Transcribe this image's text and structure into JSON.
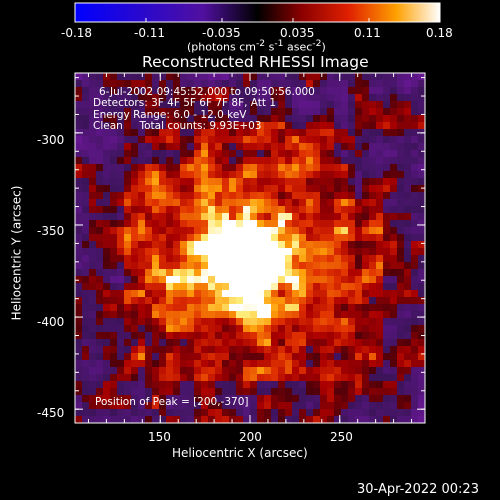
{
  "colorbar": {
    "ticks": [
      "-0.18",
      "-0.11",
      "-0.035",
      "0.035",
      "0.11",
      "0.18"
    ],
    "tick_values": [
      -0.18,
      -0.11,
      -0.035,
      0.035,
      0.11,
      0.18
    ],
    "range": [
      -0.18,
      0.18
    ],
    "units_html": "(photons cm<sup>-2</sup> s<sup>-1</sup> asec<sup>-2</sup>)"
  },
  "title": "Reconstructed RHESSI Image",
  "info_lines": [
    "6-Jul-2002 09:45:52.000 to 09:50:56.000",
    "Detectors: 3F 4F 5F 6F 7F 8F, Att 1",
    "Energy Range: 6.0 - 12.0 keV",
    "Clean     Total counts: 9.93E+03"
  ],
  "peak_label": "Position of Peak = [200,-370]",
  "peak": [
    200,
    -370
  ],
  "xaxis": {
    "label": "Heliocentric X (arcsec)",
    "ticks": [
      "150",
      "200",
      "250"
    ],
    "tick_values": [
      150,
      200,
      250
    ],
    "range": [
      102.5,
      297.5
    ]
  },
  "yaxis": {
    "label": "Heliocentric Y (arcsec)",
    "ticks": [
      "-300",
      "-350",
      "-400",
      "-450"
    ],
    "tick_values": [
      -300,
      -350,
      -400,
      -450
    ],
    "range": [
      -457.5,
      -267.5
    ]
  },
  "timestamp": "30-Apr-2022 00:23",
  "colors": {
    "background": "#000000",
    "foreground": "#ffffff"
  }
}
